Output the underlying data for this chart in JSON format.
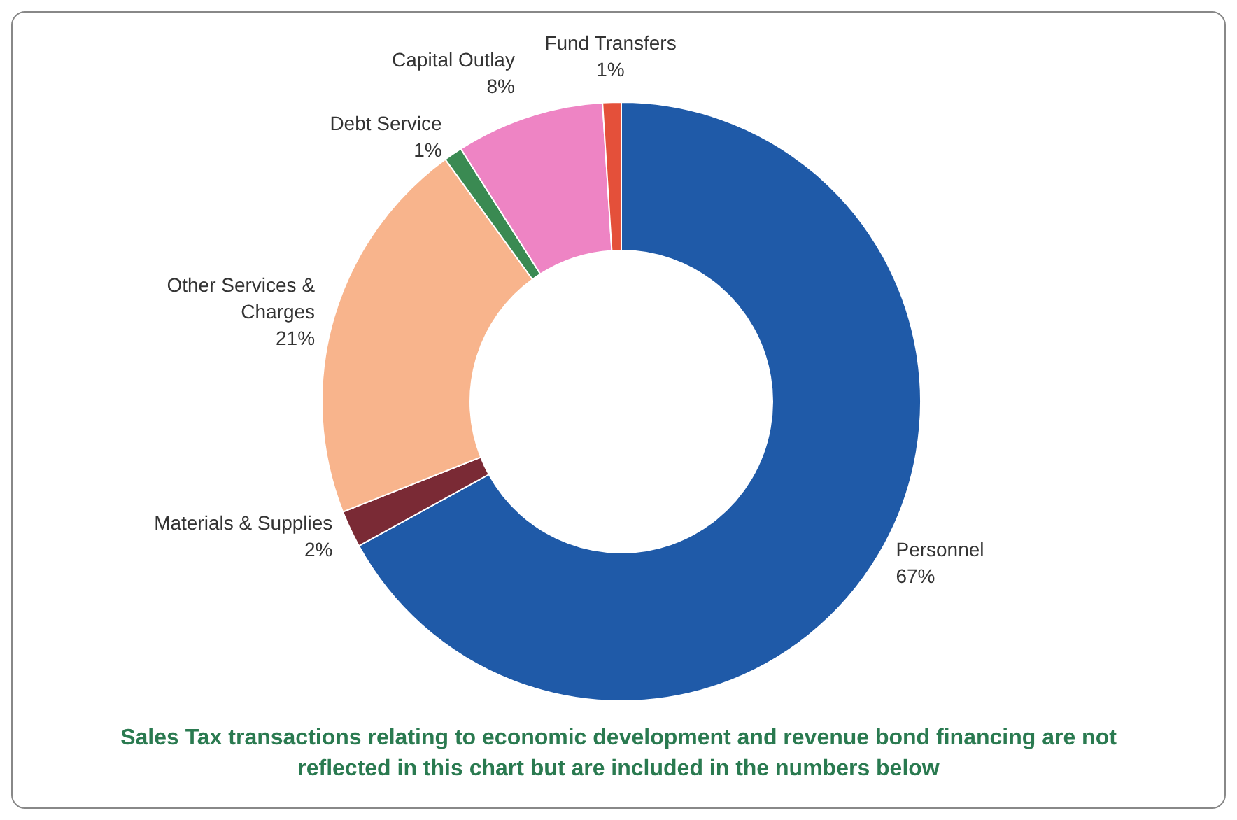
{
  "chart_data": {
    "type": "donut",
    "categories": [
      "Personnel",
      "Materials & Supplies",
      "Other Services & Charges",
      "Debt Service",
      "Capital Outlay",
      "Fund Transfers"
    ],
    "values": [
      67,
      2,
      21,
      1,
      8,
      1
    ],
    "colors": [
      "#1f5aa8",
      "#7a2a35",
      "#f8b48c",
      "#3a8a52",
      "#ee84c4",
      "#e4503a"
    ],
    "value_labels": [
      "67%",
      "2%",
      "21%",
      "1%",
      "8%",
      "1%"
    ],
    "annotations": [
      "Sales Tax transactions relating to economic development and revenue bond financing are not reflected in this chart but are included in the numbers below"
    ]
  }
}
